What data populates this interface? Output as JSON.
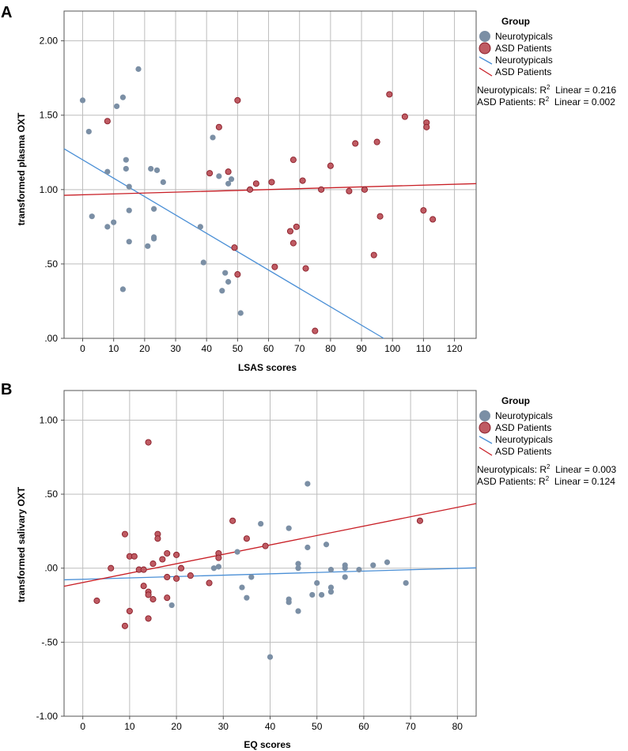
{
  "colors": {
    "neuro_fill": "#7b8fa5",
    "asd_fill": "#bf5b63",
    "asd_stroke": "#8a1d28",
    "neuro_line": "#4a8fd6",
    "asd_line": "#c81e25",
    "grid": "#bdbdbd",
    "frame": "#555555"
  },
  "chart_data": [
    {
      "type": "scatter",
      "panel_label": "A",
      "xlabel": "LSAS scores",
      "ylabel": "transformed plasma OXT",
      "xlim": [
        -6,
        127
      ],
      "ylim": [
        0,
        2.2
      ],
      "x_ticks": [
        0,
        10,
        20,
        30,
        40,
        50,
        60,
        70,
        80,
        90,
        100,
        110,
        120
      ],
      "x_tick_labels": [
        "0",
        "10",
        "20",
        "30",
        "40",
        "50",
        "60",
        "70",
        "80",
        "90",
        "100",
        "110",
        "120"
      ],
      "y_ticks": [
        0,
        0.5,
        1.0,
        1.5,
        2.0
      ],
      "y_tick_labels": [
        ".00",
        ".50",
        "1.00",
        "1.50",
        "2.00"
      ],
      "legend": {
        "title": "Group",
        "markers": [
          "Neurotypicals",
          "ASD Patients"
        ],
        "lines": [
          "Neurotypicals",
          "ASD Patients"
        ],
        "stats": [
          {
            "group": "Neurotypicals: R",
            "sup": "2",
            "tail": "  Linear = 0.216"
          },
          {
            "group": "ASD Patients: R",
            "sup": "2",
            "tail": "  Linear = 0.002"
          }
        ]
      },
      "series": [
        {
          "name": "Neurotypicals",
          "points": [
            [
              0,
              1.6
            ],
            [
              2,
              1.39
            ],
            [
              3,
              0.82
            ],
            [
              8,
              1.12
            ],
            [
              8,
              0.75
            ],
            [
              10,
              0.78
            ],
            [
              11,
              1.56
            ],
            [
              13,
              1.62
            ],
            [
              14,
              1.2
            ],
            [
              14,
              1.14
            ],
            [
              15,
              1.02
            ],
            [
              15,
              0.86
            ],
            [
              15,
              0.65
            ],
            [
              13,
              0.33
            ],
            [
              18,
              1.81
            ],
            [
              21,
              0.62
            ],
            [
              22,
              1.14
            ],
            [
              23,
              0.87
            ],
            [
              23,
              0.68
            ],
            [
              23,
              0.67
            ],
            [
              24,
              1.13
            ],
            [
              26,
              1.05
            ],
            [
              38,
              0.75
            ],
            [
              39,
              0.51
            ],
            [
              42,
              1.35
            ],
            [
              44,
              1.09
            ],
            [
              45,
              0.32
            ],
            [
              46,
              0.44
            ],
            [
              47,
              1.04
            ],
            [
              47,
              0.38
            ],
            [
              48,
              1.07
            ],
            [
              51,
              0.17
            ]
          ]
        },
        {
          "name": "ASD Patients",
          "points": [
            [
              8,
              1.46
            ],
            [
              41,
              1.11
            ],
            [
              44,
              1.42
            ],
            [
              47,
              1.12
            ],
            [
              49,
              0.61
            ],
            [
              50,
              1.6
            ],
            [
              50,
              0.43
            ],
            [
              54,
              1.0
            ],
            [
              56,
              1.04
            ],
            [
              61,
              1.05
            ],
            [
              62,
              0.48
            ],
            [
              67,
              0.72
            ],
            [
              68,
              1.2
            ],
            [
              68,
              0.64
            ],
            [
              69,
              0.75
            ],
            [
              71,
              1.06
            ],
            [
              72,
              0.47
            ],
            [
              75,
              0.05
            ],
            [
              77,
              1.0
            ],
            [
              80,
              1.16
            ],
            [
              86,
              0.99
            ],
            [
              88,
              1.31
            ],
            [
              91,
              1.0
            ],
            [
              94,
              0.56
            ],
            [
              95,
              1.32
            ],
            [
              96,
              0.82
            ],
            [
              99,
              1.64
            ],
            [
              104,
              1.49
            ],
            [
              110,
              0.86
            ],
            [
              111,
              1.45
            ],
            [
              111,
              1.42
            ],
            [
              113,
              0.8
            ]
          ]
        }
      ],
      "fit_lines": [
        {
          "name": "Neurotypicals",
          "intercept": 1.2,
          "slope": -0.01235
        },
        {
          "name": "ASD Patients",
          "intercept": 0.965,
          "slope": 0.000589
        }
      ]
    },
    {
      "type": "scatter",
      "panel_label": "B",
      "xlabel": "EQ scores",
      "ylabel": "transformed salivary OXT",
      "xlim": [
        -4,
        84
      ],
      "ylim": [
        -1.0,
        1.2
      ],
      "x_ticks": [
        0,
        10,
        20,
        30,
        40,
        50,
        60,
        70,
        80
      ],
      "x_tick_labels": [
        "0",
        "10",
        "20",
        "30",
        "40",
        "50",
        "60",
        "70",
        "80"
      ],
      "y_ticks": [
        -1.0,
        -0.5,
        0,
        0.5,
        1.0
      ],
      "y_tick_labels": [
        "-1.00",
        "-.50",
        ".00",
        ".50",
        "1.00"
      ],
      "legend": {
        "title": "Group",
        "markers": [
          "Neurotypicals",
          "ASD Patients"
        ],
        "lines": [
          "Neurotypicals",
          "ASD Patients"
        ],
        "stats": [
          {
            "group": "Neurotypicals: R",
            "sup": "2",
            "tail": "  Linear = 0.003"
          },
          {
            "group": "ASD Patients: R",
            "sup": "2",
            "tail": "  Linear = 0.124"
          }
        ]
      },
      "series": [
        {
          "name": "Neurotypicals",
          "points": [
            [
              19,
              -0.25
            ],
            [
              28,
              0.0
            ],
            [
              29,
              0.01
            ],
            [
              33,
              0.11
            ],
            [
              34,
              -0.13
            ],
            [
              35,
              -0.2
            ],
            [
              36,
              -0.06
            ],
            [
              38,
              0.3
            ],
            [
              40,
              -0.6
            ],
            [
              44,
              0.27
            ],
            [
              44,
              -0.21
            ],
            [
              44,
              -0.23
            ],
            [
              46,
              0.03
            ],
            [
              46,
              0.0
            ],
            [
              46,
              -0.29
            ],
            [
              48,
              0.57
            ],
            [
              48,
              0.14
            ],
            [
              49,
              -0.18
            ],
            [
              50,
              -0.1
            ],
            [
              51,
              -0.18
            ],
            [
              52,
              0.16
            ],
            [
              53,
              -0.01
            ],
            [
              53,
              -0.13
            ],
            [
              53,
              -0.16
            ],
            [
              56,
              0.02
            ],
            [
              56,
              0.0
            ],
            [
              56,
              -0.06
            ],
            [
              59,
              -0.01
            ],
            [
              62,
              0.02
            ],
            [
              65,
              0.04
            ],
            [
              69,
              -0.1
            ]
          ]
        },
        {
          "name": "ASD Patients",
          "points": [
            [
              3,
              -0.22
            ],
            [
              6,
              0.0
            ],
            [
              9,
              0.23
            ],
            [
              9,
              -0.39
            ],
            [
              10,
              0.08
            ],
            [
              10,
              -0.29
            ],
            [
              11,
              0.08
            ],
            [
              12,
              -0.01
            ],
            [
              13,
              -0.01
            ],
            [
              13,
              -0.12
            ],
            [
              14,
              0.85
            ],
            [
              14,
              -0.16
            ],
            [
              14,
              -0.18
            ],
            [
              14,
              -0.34
            ],
            [
              15,
              0.03
            ],
            [
              15,
              -0.21
            ],
            [
              16,
              0.23
            ],
            [
              16,
              0.2
            ],
            [
              17,
              0.06
            ],
            [
              18,
              0.1
            ],
            [
              18,
              -0.06
            ],
            [
              18,
              -0.2
            ],
            [
              20,
              0.09
            ],
            [
              20,
              -0.07
            ],
            [
              21,
              0.0
            ],
            [
              23,
              -0.05
            ],
            [
              27,
              -0.1
            ],
            [
              29,
              0.1
            ],
            [
              29,
              0.07
            ],
            [
              32,
              0.32
            ],
            [
              35,
              0.2
            ],
            [
              39,
              0.15
            ],
            [
              72,
              0.32
            ]
          ]
        }
      ],
      "fit_lines": [
        {
          "name": "Neurotypicals",
          "intercept": -0.075,
          "slope": 0.00092
        },
        {
          "name": "ASD Patients",
          "intercept": -0.097,
          "slope": 0.00635
        }
      ]
    }
  ]
}
